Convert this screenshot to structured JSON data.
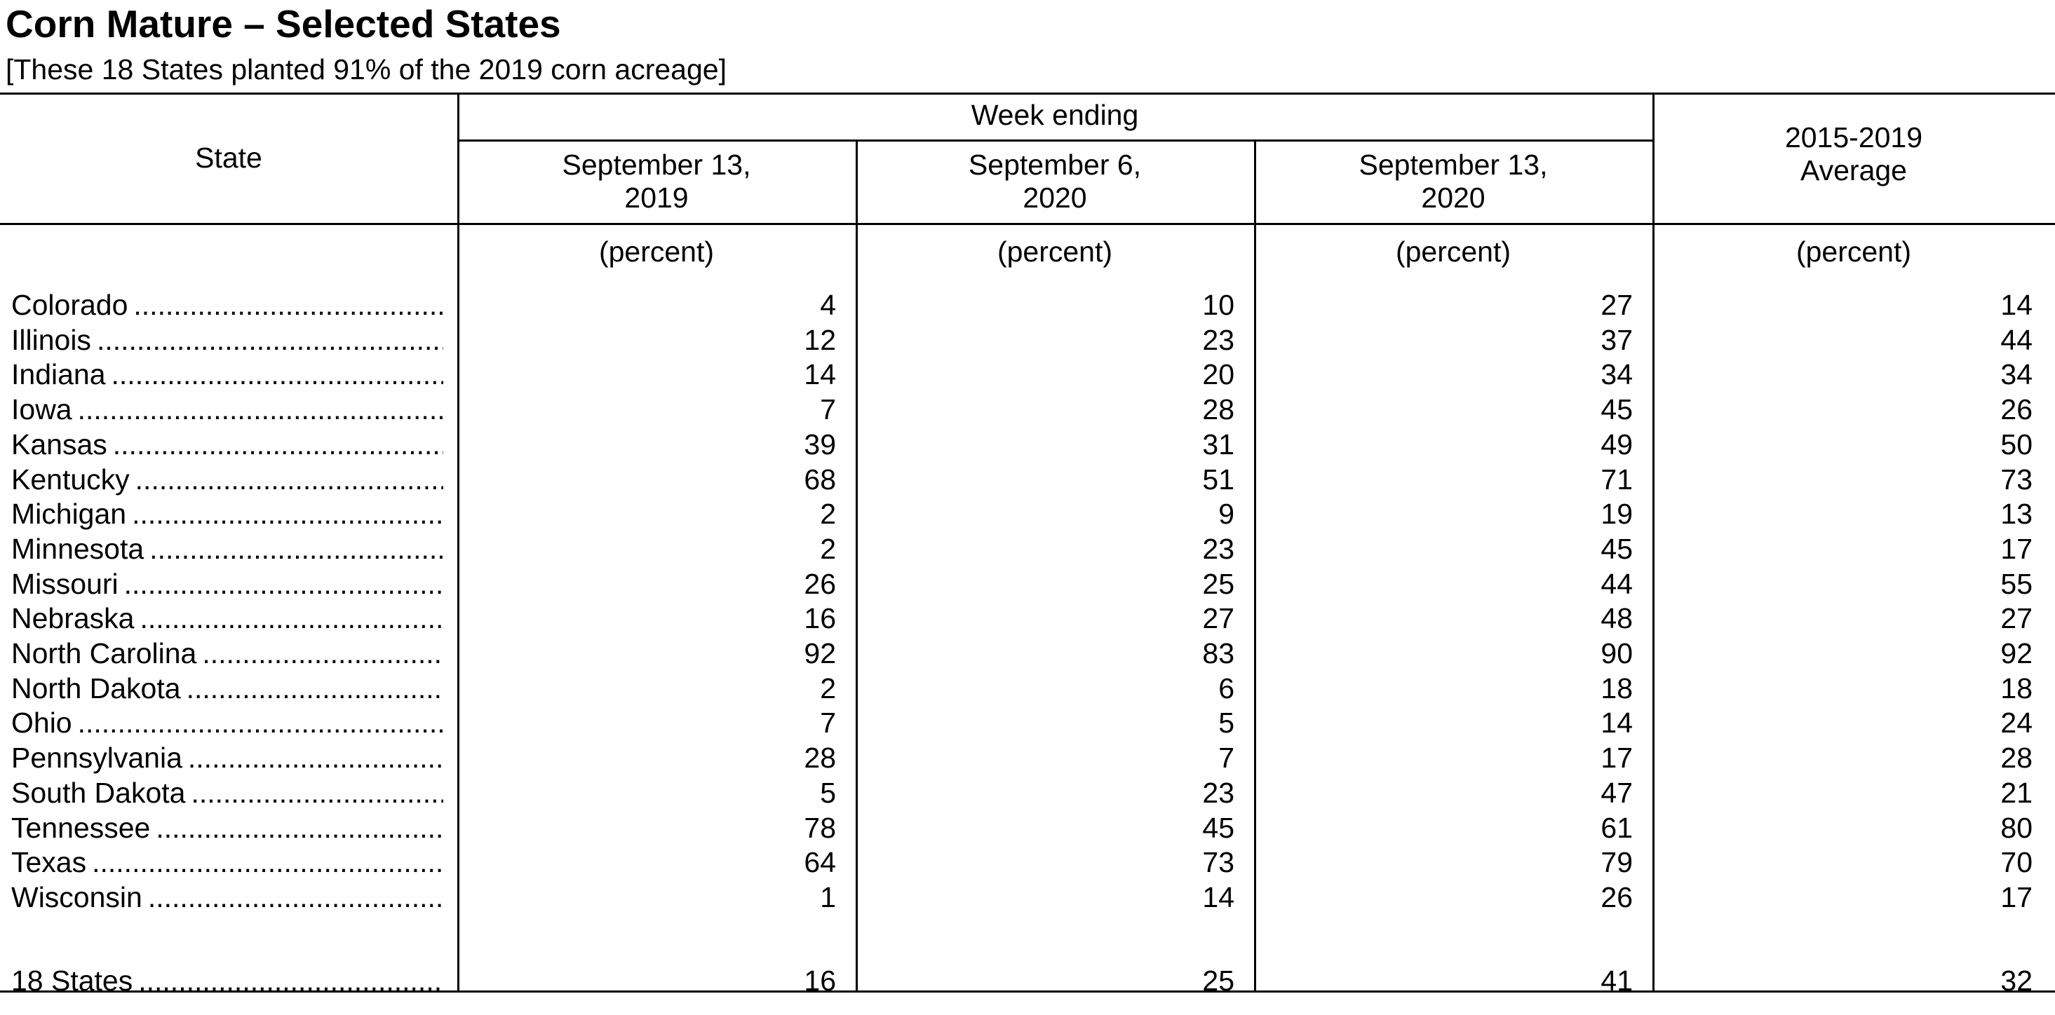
{
  "title": "Corn Mature – Selected States",
  "subtitle": "[These 18 States planted 91% of the 2019 corn acreage]",
  "table": {
    "state_header": "State",
    "week_ending_header": "Week ending",
    "columns": [
      {
        "line1": "September 13,",
        "line2": "2019"
      },
      {
        "line1": "September 6,",
        "line2": "2020"
      },
      {
        "line1": "September 13,",
        "line2": "2020"
      },
      {
        "line1": "2015-2019",
        "line2": "Average"
      }
    ],
    "unit_label": "(percent)",
    "rows": [
      {
        "state": "Colorado",
        "values": [
          "4",
          "10",
          "27",
          "14"
        ]
      },
      {
        "state": "Illinois",
        "values": [
          "12",
          "23",
          "37",
          "44"
        ]
      },
      {
        "state": "Indiana",
        "values": [
          "14",
          "20",
          "34",
          "34"
        ]
      },
      {
        "state": "Iowa",
        "values": [
          "7",
          "28",
          "45",
          "26"
        ]
      },
      {
        "state": "Kansas",
        "values": [
          "39",
          "31",
          "49",
          "50"
        ]
      },
      {
        "state": "Kentucky",
        "values": [
          "68",
          "51",
          "71",
          "73"
        ]
      },
      {
        "state": "Michigan",
        "values": [
          "2",
          "9",
          "19",
          "13"
        ]
      },
      {
        "state": "Minnesota",
        "values": [
          "2",
          "23",
          "45",
          "17"
        ]
      },
      {
        "state": "Missouri",
        "values": [
          "26",
          "25",
          "44",
          "55"
        ]
      },
      {
        "state": "Nebraska",
        "values": [
          "16",
          "27",
          "48",
          "27"
        ]
      },
      {
        "state": "North Carolina",
        "values": [
          "92",
          "83",
          "90",
          "92"
        ]
      },
      {
        "state": "North Dakota",
        "values": [
          "2",
          "6",
          "18",
          "18"
        ]
      },
      {
        "state": "Ohio",
        "values": [
          "7",
          "5",
          "14",
          "24"
        ]
      },
      {
        "state": "Pennsylvania",
        "values": [
          "28",
          "7",
          "17",
          "28"
        ]
      },
      {
        "state": "South Dakota",
        "values": [
          "5",
          "23",
          "47",
          "21"
        ]
      },
      {
        "state": "Tennessee",
        "values": [
          "78",
          "45",
          "61",
          "80"
        ]
      },
      {
        "state": "Texas",
        "values": [
          "64",
          "73",
          "79",
          "70"
        ]
      },
      {
        "state": "Wisconsin",
        "values": [
          "1",
          "14",
          "26",
          "17"
        ]
      }
    ],
    "total": {
      "state": "18 States",
      "values": [
        "16",
        "25",
        "41",
        "32"
      ]
    }
  }
}
